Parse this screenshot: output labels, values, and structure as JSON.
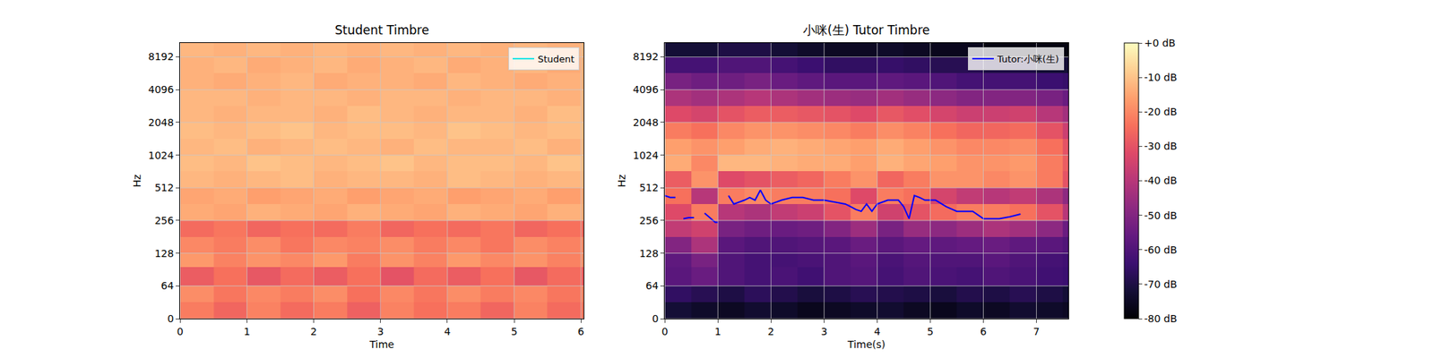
{
  "chart_data": [
    {
      "type": "heatmap",
      "title": "Student Timbre",
      "x_label": "Time",
      "y_label": "Hz",
      "xlim": [
        0,
        6.04
      ],
      "xticks": [
        0,
        1,
        2,
        3,
        4,
        5,
        6
      ],
      "ylim": [
        0,
        11025
      ],
      "yticks": [
        0,
        64,
        128,
        256,
        512,
        1024,
        2048,
        4096,
        8192
      ],
      "log": "y",
      "grid": true,
      "legend": "upper right",
      "x_edges": [
        0,
        0.5,
        1,
        1.5,
        2,
        2.5,
        3,
        3.5,
        4,
        4.5,
        5,
        5.5,
        6,
        6.04
      ],
      "y_edges": [
        0,
        32,
        64,
        96,
        128,
        181,
        256,
        362,
        512,
        724,
        1024,
        1448,
        2048,
        2896,
        4096,
        5793,
        8192,
        11025
      ],
      "z": [
        [
          -22,
          -26,
          -21,
          -25,
          -22,
          -27,
          -21,
          -24,
          -22,
          -26,
          -21,
          -25,
          -23
        ],
        [
          -19,
          -23,
          -20,
          -22,
          -19,
          -24,
          -20,
          -23,
          -19,
          -22,
          -20,
          -23,
          -21
        ],
        [
          -28,
          -24,
          -29,
          -25,
          -28,
          -24,
          -30,
          -25,
          -28,
          -24,
          -29,
          -25,
          -27
        ],
        [
          -17,
          -21,
          -18,
          -20,
          -17,
          -22,
          -18,
          -21,
          -17,
          -20,
          -18,
          -21,
          -19
        ],
        [
          -20,
          -22,
          -19,
          -23,
          -20,
          -21,
          -19,
          -22,
          -20,
          -23,
          -19,
          -21,
          -20
        ],
        [
          -25,
          -23,
          -26,
          -24,
          -25,
          -22,
          -26,
          -24,
          -25,
          -23,
          -26,
          -24,
          -25
        ],
        [
          -14,
          -15,
          -13,
          -14,
          -15,
          -13,
          -14,
          -15,
          -13,
          -14,
          -15,
          -13,
          -14
        ],
        [
          -15,
          -14,
          -16,
          -15,
          -14,
          -16,
          -15,
          -14,
          -16,
          -15,
          -14,
          -16,
          -15
        ],
        [
          -12,
          -13,
          -12,
          -11,
          -13,
          -12,
          -12,
          -13,
          -11,
          -12,
          -13,
          -12,
          -12
        ],
        [
          -11,
          -12,
          -10,
          -11,
          -12,
          -11,
          -10,
          -12,
          -11,
          -11,
          -12,
          -10,
          -11
        ],
        [
          -12,
          -11,
          -13,
          -12,
          -11,
          -12,
          -13,
          -11,
          -12,
          -12,
          -11,
          -13,
          -12
        ],
        [
          -11,
          -12,
          -11,
          -10,
          -12,
          -11,
          -11,
          -12,
          -10,
          -11,
          -12,
          -11,
          -11
        ],
        [
          -12,
          -13,
          -12,
          -12,
          -13,
          -11,
          -12,
          -13,
          -12,
          -12,
          -13,
          -11,
          -12
        ],
        [
          -12,
          -12,
          -13,
          -12,
          -12,
          -13,
          -12,
          -12,
          -13,
          -12,
          -12,
          -13,
          -12
        ],
        [
          -13,
          -14,
          -13,
          -12,
          -14,
          -13,
          -13,
          -14,
          -12,
          -13,
          -14,
          -13,
          -13
        ],
        [
          -13,
          -12,
          -14,
          -13,
          -12,
          -14,
          -13,
          -12,
          -14,
          -13,
          -12,
          -14,
          -13
        ],
        [
          -12,
          -13,
          -12,
          -13,
          -12,
          -13,
          -12,
          -13,
          -12,
          -13,
          -12,
          -13,
          -12
        ]
      ],
      "series": [
        {
          "name": "Student",
          "color": "#00e5e5",
          "type": "line",
          "x": [],
          "values": []
        }
      ]
    },
    {
      "type": "heatmap",
      "title": "小咪(生) Tutor Timbre",
      "x_label": "Time(s)",
      "y_label": "Hz",
      "xlim": [
        0,
        7.6
      ],
      "xticks": [
        0,
        1,
        2,
        3,
        4,
        5,
        6,
        7
      ],
      "ylim": [
        0,
        11025
      ],
      "yticks": [
        0,
        64,
        128,
        256,
        512,
        1024,
        2048,
        4096,
        8192
      ],
      "log": "y",
      "grid": true,
      "legend": "upper right",
      "x_edges": [
        0,
        0.5,
        1,
        1.5,
        2,
        2.5,
        3,
        3.5,
        4,
        4.5,
        5,
        5.5,
        6,
        6.5,
        7,
        7.5,
        7.6
      ],
      "y_edges": [
        0,
        32,
        64,
        96,
        128,
        181,
        256,
        362,
        512,
        724,
        1024,
        1448,
        2048,
        2896,
        4096,
        5793,
        8192,
        11025
      ],
      "z": [
        [
          -72,
          -74,
          -75,
          -73,
          -74,
          -76,
          -75,
          -74,
          -73,
          -75,
          -76,
          -74,
          -75,
          -73,
          -74,
          -75
        ],
        [
          -66,
          -68,
          -70,
          -67,
          -69,
          -71,
          -70,
          -68,
          -69,
          -70,
          -71,
          -69,
          -70,
          -68,
          -70,
          -72
        ],
        [
          -58,
          -55,
          -60,
          -62,
          -61,
          -63,
          -60,
          -59,
          -62,
          -60,
          -61,
          -62,
          -60,
          -61,
          -63,
          -64
        ],
        [
          -57,
          -52,
          -60,
          -62,
          -62,
          -61,
          -60,
          -58,
          -61,
          -59,
          -60,
          -60,
          -58,
          -60,
          -62,
          -63
        ],
        [
          -50,
          -42,
          -58,
          -60,
          -60,
          -59,
          -58,
          -55,
          -58,
          -56,
          -57,
          -56,
          -55,
          -57,
          -58,
          -60
        ],
        [
          -38,
          -35,
          -52,
          -54,
          -55,
          -54,
          -50,
          -45,
          -52,
          -46,
          -48,
          -45,
          -42,
          -44,
          -48,
          -55
        ],
        [
          -32,
          -22,
          -40,
          -42,
          -38,
          -36,
          -30,
          -22,
          -35,
          -30,
          -25,
          -22,
          -22,
          -24,
          -30,
          -40
        ],
        [
          -24,
          -40,
          -22,
          -20,
          -22,
          -22,
          -24,
          -32,
          -22,
          -24,
          -34,
          -38,
          -40,
          -38,
          -42,
          -48
        ],
        [
          -28,
          -18,
          -32,
          -30,
          -28,
          -26,
          -22,
          -18,
          -26,
          -22,
          -18,
          -18,
          -20,
          -18,
          -22,
          -30
        ],
        [
          -14,
          -20,
          -12,
          -12,
          -13,
          -14,
          -14,
          -16,
          -13,
          -15,
          -16,
          -18,
          -18,
          -17,
          -22,
          -28
        ],
        [
          -16,
          -18,
          -16,
          -14,
          -13,
          -14,
          -15,
          -16,
          -14,
          -16,
          -18,
          -20,
          -20,
          -19,
          -24,
          -30
        ],
        [
          -22,
          -24,
          -20,
          -18,
          -18,
          -19,
          -20,
          -22,
          -19,
          -21,
          -24,
          -26,
          -26,
          -25,
          -30,
          -36
        ],
        [
          -32,
          -34,
          -30,
          -28,
          -28,
          -29,
          -30,
          -32,
          -29,
          -31,
          -34,
          -36,
          -36,
          -35,
          -40,
          -44
        ],
        [
          -42,
          -44,
          -42,
          -40,
          -42,
          -44,
          -45,
          -46,
          -44,
          -46,
          -48,
          -50,
          -50,
          -50,
          -52,
          -55
        ],
        [
          -52,
          -54,
          -54,
          -52,
          -55,
          -57,
          -58,
          -58,
          -57,
          -58,
          -60,
          -62,
          -62,
          -62,
          -64,
          -65
        ],
        [
          -62,
          -62,
          -60,
          -60,
          -62,
          -64,
          -66,
          -66,
          -65,
          -66,
          -68,
          -68,
          -70,
          -70,
          -72,
          -72
        ],
        [
          -72,
          -72,
          -70,
          -70,
          -72,
          -74,
          -75,
          -75,
          -74,
          -75,
          -76,
          -76,
          -78,
          -78,
          -78,
          -78
        ]
      ],
      "colorbar": {
        "range": [
          -80,
          0
        ],
        "ticks": [
          {
            "value": 0,
            "label": "+0 dB"
          },
          {
            "value": -10,
            "label": "-10 dB"
          },
          {
            "value": -20,
            "label": "-20 dB"
          },
          {
            "value": -30,
            "label": "-30 dB"
          },
          {
            "value": -40,
            "label": "-40 dB"
          },
          {
            "value": -50,
            "label": "-50 dB"
          },
          {
            "value": -60,
            "label": "-60 dB"
          },
          {
            "value": -70,
            "label": "-70 dB"
          },
          {
            "value": -80,
            "label": "-80 dB"
          }
        ]
      },
      "series": [
        {
          "name": "Tutor:小咪(生)",
          "color": "#0000ff",
          "type": "line",
          "x": [
            0,
            0.1,
            0.2,
            0.25,
            0.35,
            0.45,
            0.55,
            0.6,
            0.75,
            0.85,
            0.95,
            1.0,
            1.05,
            1.1,
            1.2,
            1.3,
            1.4,
            1.5,
            1.6,
            1.7,
            1.8,
            1.9,
            2.0,
            2.2,
            2.4,
            2.6,
            2.8,
            3.0,
            3.2,
            3.4,
            3.5,
            3.6,
            3.7,
            3.8,
            3.9,
            4.0,
            4.2,
            4.4,
            4.5,
            4.6,
            4.7,
            4.8,
            4.9,
            5.1,
            5.3,
            5.5,
            5.8,
            6.0,
            6.3,
            6.5,
            6.7
          ],
          "values": [
            434,
            417,
            417,
            null,
            266,
            272,
            272,
            null,
            299,
            272,
            246,
            246,
            null,
            null,
            434,
            363,
            378,
            394,
            417,
            394,
            487,
            394,
            363,
            394,
            417,
            417,
            394,
            394,
            378,
            363,
            343,
            323,
            311,
            363,
            311,
            363,
            394,
            394,
            343,
            266,
            434,
            417,
            394,
            394,
            343,
            311,
            311,
            266,
            266,
            277,
            293
          ]
        }
      ]
    }
  ]
}
